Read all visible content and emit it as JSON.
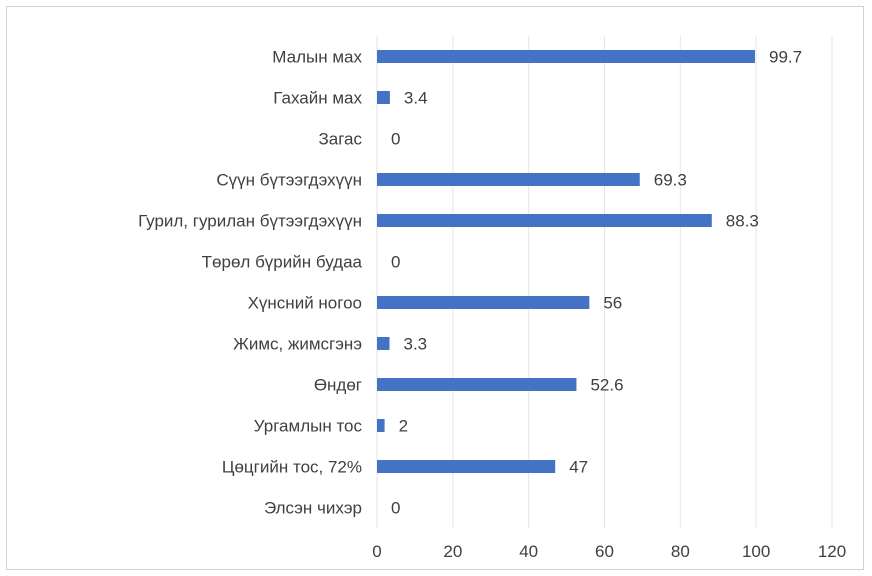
{
  "chart_data": {
    "type": "bar",
    "orientation": "horizontal",
    "categories": [
      "Малын мах",
      "Гахайн мах",
      "Загас",
      "Сүүн бүтээгдэхүүн",
      "Гурил, гурилан бүтээгдэхүүн",
      "Төрөл бүрийн будаа",
      "Хүнсний ногоо",
      "Жимс, жимсгэнэ",
      "Өндөг",
      "Ургамлын тос",
      "Цөцгийн тос, 72%",
      "Элсэн чихэр"
    ],
    "values": [
      99.7,
      3.4,
      0,
      69.3,
      88.3,
      0,
      56,
      3.3,
      52.6,
      2,
      47,
      0
    ],
    "value_labels": [
      "99.7",
      "3.4",
      "0",
      "69.3",
      "88.3",
      "0",
      "56",
      "3.3",
      "52.6",
      "2",
      "47",
      "0"
    ],
    "xlim": [
      0,
      120
    ],
    "xticks": [
      0,
      20,
      40,
      60,
      80,
      100,
      120
    ],
    "grid": true,
    "legend": "none",
    "bar_color": "#4472C4",
    "grid_color": "#e6e6e6",
    "text_color": "#404040"
  }
}
